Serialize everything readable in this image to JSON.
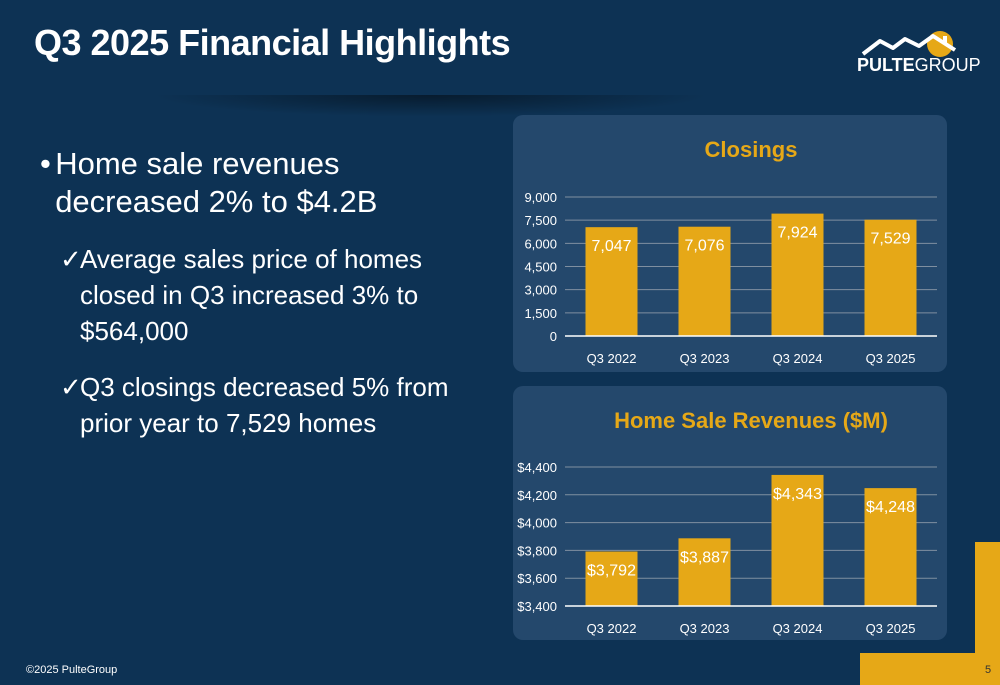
{
  "title": "Q3 2025 Financial Highlights",
  "logo_text": "PULTEGROUP",
  "bullets": [
    {
      "icon": "bullet-dot",
      "text": "Home sale revenues decreased 2% to $4.2B",
      "subs": [
        {
          "icon": "checkmark",
          "text": "Average sales price of homes closed in Q3 increased 3% to $564,000"
        },
        {
          "icon": "checkmark",
          "text": "Q3 closings decreased 5% from prior year to 7,529 homes"
        }
      ]
    }
  ],
  "glyphs": {
    "dot": "•",
    "check": "✓"
  },
  "footer": "©2025 PulteGroup",
  "page_number": "5",
  "colors": {
    "background": "#0d3254",
    "panel": "#24486c",
    "accent": "#e6a817",
    "grid": "#7f8fa0"
  },
  "chart_data": [
    {
      "type": "bar",
      "title": "Closings",
      "categories": [
        "Q3 2022",
        "Q3 2023",
        "Q3 2024",
        "Q3 2025"
      ],
      "values": [
        7047,
        7076,
        7924,
        7529
      ],
      "data_labels": [
        "7,047",
        "7,076",
        "7,924",
        "7,529"
      ],
      "ylim": [
        0,
        9000
      ],
      "yticks": [
        "0",
        "1,500",
        "3,000",
        "4,500",
        "6,000",
        "7,500",
        "9,000"
      ],
      "yticks_values": [
        0,
        1500,
        3000,
        4500,
        6000,
        7500,
        9000
      ],
      "grid": true,
      "legend": "none"
    },
    {
      "type": "bar",
      "title": "Home Sale Revenues ($M)",
      "categories": [
        "Q3 2022",
        "Q3 2023",
        "Q3 2024",
        "Q3 2025"
      ],
      "values": [
        3792,
        3887,
        4343,
        4248
      ],
      "data_labels": [
        "$3,792",
        "$3,887",
        "$4,343",
        "$4,248"
      ],
      "ylim": [
        3400,
        4400
      ],
      "yticks": [
        "$3,400",
        "$3,600",
        "$3,800",
        "$4,000",
        "$4,200",
        "$4,400"
      ],
      "yticks_values": [
        3400,
        3600,
        3800,
        4000,
        4200,
        4400
      ],
      "grid": true,
      "legend": "none"
    }
  ]
}
